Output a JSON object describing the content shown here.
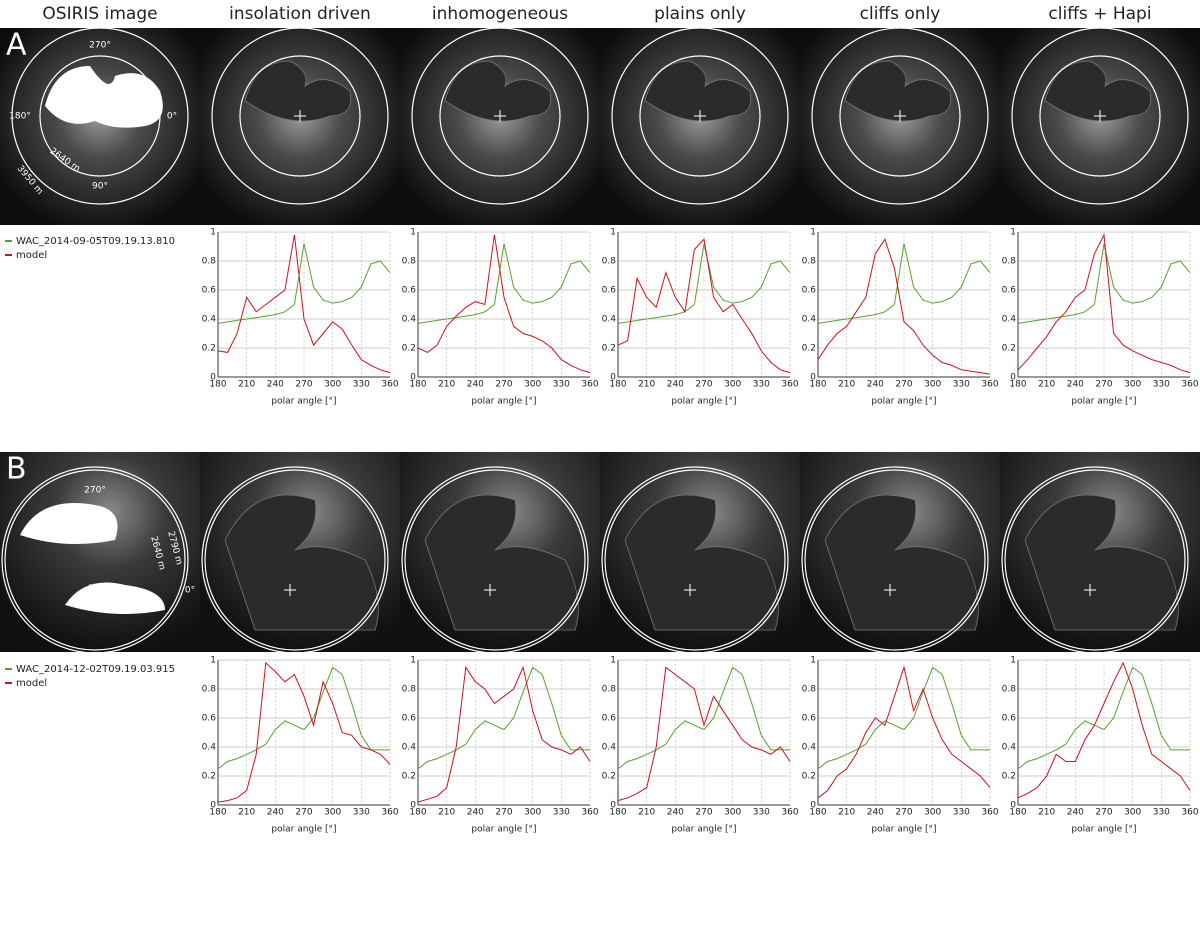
{
  "columns": [
    "OSIRIS image",
    "insolation driven",
    "inhomogeneous",
    "plains only",
    "cliffs only",
    "cliffs + Hapi"
  ],
  "panels": [
    {
      "letter": "A",
      "labels": [
        "270°",
        "0°",
        "180°",
        "90°",
        "2640 m",
        "3950 m"
      ]
    },
    {
      "letter": "B",
      "labels": [
        "270°",
        "0°",
        "2790 m",
        "2640 m"
      ]
    }
  ],
  "chart_data": [
    {
      "type": "line",
      "xlabel": "polar angle [°]",
      "x": [
        180,
        190,
        200,
        210,
        220,
        230,
        240,
        250,
        260,
        270,
        280,
        290,
        300,
        310,
        320,
        330,
        340,
        350,
        360
      ],
      "xlim": [
        180,
        360
      ],
      "xticks": [
        180,
        210,
        240,
        270,
        300,
        330,
        360
      ],
      "ylim": [
        0,
        1
      ],
      "yticks": [
        0,
        0.2,
        0.4,
        0.6,
        0.8,
        1
      ],
      "grid": true,
      "series": [
        {
          "name": "WAC_2014-09-05T09.19.13.810",
          "color": "#5aa02c",
          "values": [
            0.37,
            0.38,
            0.39,
            0.4,
            0.41,
            0.42,
            0.43,
            0.45,
            0.5,
            0.92,
            0.62,
            0.53,
            0.51,
            0.52,
            0.55,
            0.62,
            0.78,
            0.8,
            0.72
          ]
        },
        {
          "name": "model",
          "color": "#c8141e",
          "values": [
            0.18,
            0.17,
            0.3,
            0.55,
            0.45,
            0.5,
            0.55,
            0.6,
            0.98,
            0.4,
            0.22,
            0.3,
            0.38,
            0.33,
            0.22,
            0.12,
            0.08,
            0.05,
            0.03
          ]
        }
      ]
    },
    {
      "type": "line",
      "xlabel": "polar angle [°]",
      "x": [
        180,
        190,
        200,
        210,
        220,
        230,
        240,
        250,
        260,
        270,
        280,
        290,
        300,
        310,
        320,
        330,
        340,
        350,
        360
      ],
      "xlim": [
        180,
        360
      ],
      "xticks": [
        180,
        210,
        240,
        270,
        300,
        330,
        360
      ],
      "ylim": [
        0,
        1
      ],
      "yticks": [
        0,
        0.2,
        0.4,
        0.6,
        0.8,
        1
      ],
      "grid": true,
      "series": [
        {
          "color": "#5aa02c",
          "values": [
            0.37,
            0.38,
            0.39,
            0.4,
            0.41,
            0.42,
            0.43,
            0.45,
            0.5,
            0.92,
            0.62,
            0.53,
            0.51,
            0.52,
            0.55,
            0.62,
            0.78,
            0.8,
            0.72
          ]
        },
        {
          "color": "#c8141e",
          "values": [
            0.2,
            0.17,
            0.22,
            0.35,
            0.42,
            0.48,
            0.52,
            0.5,
            0.98,
            0.55,
            0.35,
            0.3,
            0.28,
            0.25,
            0.2,
            0.12,
            0.08,
            0.05,
            0.03
          ]
        }
      ]
    },
    {
      "type": "line",
      "xlabel": "polar angle [°]",
      "x": [
        180,
        190,
        200,
        210,
        220,
        230,
        240,
        250,
        260,
        270,
        280,
        290,
        300,
        310,
        320,
        330,
        340,
        350,
        360
      ],
      "xlim": [
        180,
        360
      ],
      "xticks": [
        180,
        210,
        240,
        270,
        300,
        330,
        360
      ],
      "ylim": [
        0,
        1
      ],
      "yticks": [
        0,
        0.2,
        0.4,
        0.6,
        0.8,
        1
      ],
      "grid": true,
      "series": [
        {
          "color": "#5aa02c",
          "values": [
            0.37,
            0.38,
            0.39,
            0.4,
            0.41,
            0.42,
            0.43,
            0.45,
            0.5,
            0.92,
            0.62,
            0.53,
            0.51,
            0.52,
            0.55,
            0.62,
            0.78,
            0.8,
            0.72
          ]
        },
        {
          "color": "#c8141e",
          "values": [
            0.22,
            0.25,
            0.68,
            0.55,
            0.48,
            0.72,
            0.55,
            0.45,
            0.88,
            0.95,
            0.55,
            0.45,
            0.5,
            0.4,
            0.3,
            0.18,
            0.1,
            0.05,
            0.03
          ]
        }
      ]
    },
    {
      "type": "line",
      "xlabel": "polar angle [°]",
      "x": [
        180,
        190,
        200,
        210,
        220,
        230,
        240,
        250,
        260,
        270,
        280,
        290,
        300,
        310,
        320,
        330,
        340,
        350,
        360
      ],
      "xlim": [
        180,
        360
      ],
      "xticks": [
        180,
        210,
        240,
        270,
        300,
        330,
        360
      ],
      "ylim": [
        0,
        1
      ],
      "yticks": [
        0,
        0.2,
        0.4,
        0.6,
        0.8,
        1
      ],
      "grid": true,
      "series": [
        {
          "color": "#5aa02c",
          "values": [
            0.37,
            0.38,
            0.39,
            0.4,
            0.41,
            0.42,
            0.43,
            0.45,
            0.5,
            0.92,
            0.62,
            0.53,
            0.51,
            0.52,
            0.55,
            0.62,
            0.78,
            0.8,
            0.72
          ]
        },
        {
          "color": "#c8141e",
          "values": [
            0.12,
            0.22,
            0.3,
            0.35,
            0.45,
            0.55,
            0.85,
            0.95,
            0.75,
            0.38,
            0.32,
            0.22,
            0.15,
            0.1,
            0.08,
            0.05,
            0.04,
            0.03,
            0.02
          ]
        }
      ]
    },
    {
      "type": "line",
      "xlabel": "polar angle [°]",
      "x": [
        180,
        190,
        200,
        210,
        220,
        230,
        240,
        250,
        260,
        270,
        280,
        290,
        300,
        310,
        320,
        330,
        340,
        350,
        360
      ],
      "xlim": [
        180,
        360
      ],
      "xticks": [
        180,
        210,
        240,
        270,
        300,
        330,
        360
      ],
      "ylim": [
        0,
        1
      ],
      "yticks": [
        0,
        0.2,
        0.4,
        0.6,
        0.8,
        1
      ],
      "grid": true,
      "series": [
        {
          "color": "#5aa02c",
          "values": [
            0.37,
            0.38,
            0.39,
            0.4,
            0.41,
            0.42,
            0.43,
            0.45,
            0.5,
            0.92,
            0.62,
            0.53,
            0.51,
            0.52,
            0.55,
            0.62,
            0.78,
            0.8,
            0.72
          ]
        },
        {
          "color": "#c8141e",
          "values": [
            0.05,
            0.12,
            0.2,
            0.28,
            0.38,
            0.45,
            0.55,
            0.6,
            0.85,
            0.98,
            0.3,
            0.22,
            0.18,
            0.15,
            0.12,
            0.1,
            0.08,
            0.05,
            0.03
          ]
        }
      ]
    },
    {
      "type": "line",
      "xlabel": "polar angle [°]",
      "x": [
        180,
        190,
        200,
        210,
        220,
        230,
        240,
        250,
        260,
        270,
        280,
        290,
        300,
        310,
        320,
        330,
        340,
        350,
        360
      ],
      "xlim": [
        180,
        360
      ],
      "xticks": [
        180,
        210,
        240,
        270,
        300,
        330,
        360
      ],
      "ylim": [
        0,
        1
      ],
      "yticks": [
        0,
        0.2,
        0.4,
        0.6,
        0.8,
        1
      ],
      "grid": true,
      "series": [
        {
          "name": "WAC_2014-12-02T09.19.03.915",
          "color": "#5aa02c",
          "values": [
            0.25,
            0.3,
            0.32,
            0.35,
            0.38,
            0.42,
            0.52,
            0.58,
            0.55,
            0.52,
            0.6,
            0.78,
            0.95,
            0.9,
            0.7,
            0.48,
            0.38,
            0.38,
            0.38
          ]
        },
        {
          "name": "model",
          "color": "#c8141e",
          "values": [
            0.02,
            0.03,
            0.05,
            0.1,
            0.35,
            0.98,
            0.92,
            0.85,
            0.9,
            0.75,
            0.55,
            0.85,
            0.7,
            0.5,
            0.48,
            0.4,
            0.38,
            0.35,
            0.28
          ]
        }
      ]
    },
    {
      "type": "line",
      "xlabel": "polar angle [°]",
      "x": [
        180,
        190,
        200,
        210,
        220,
        230,
        240,
        250,
        260,
        270,
        280,
        290,
        300,
        310,
        320,
        330,
        340,
        350,
        360
      ],
      "xlim": [
        180,
        360
      ],
      "xticks": [
        180,
        210,
        240,
        270,
        300,
        330,
        360
      ],
      "ylim": [
        0,
        1
      ],
      "yticks": [
        0,
        0.2,
        0.4,
        0.6,
        0.8,
        1
      ],
      "grid": true,
      "series": [
        {
          "color": "#5aa02c",
          "values": [
            0.25,
            0.3,
            0.32,
            0.35,
            0.38,
            0.42,
            0.52,
            0.58,
            0.55,
            0.52,
            0.6,
            0.78,
            0.95,
            0.9,
            0.7,
            0.48,
            0.38,
            0.38,
            0.38
          ]
        },
        {
          "color": "#c8141e",
          "values": [
            0.02,
            0.04,
            0.06,
            0.12,
            0.4,
            0.95,
            0.85,
            0.8,
            0.7,
            0.75,
            0.8,
            0.95,
            0.65,
            0.45,
            0.4,
            0.38,
            0.35,
            0.4,
            0.3
          ]
        }
      ]
    },
    {
      "type": "line",
      "xlabel": "polar angle [°]",
      "x": [
        180,
        190,
        200,
        210,
        220,
        230,
        240,
        250,
        260,
        270,
        280,
        290,
        300,
        310,
        320,
        330,
        340,
        350,
        360
      ],
      "xlim": [
        180,
        360
      ],
      "xticks": [
        180,
        210,
        240,
        270,
        300,
        330,
        360
      ],
      "ylim": [
        0,
        1
      ],
      "yticks": [
        0,
        0.2,
        0.4,
        0.6,
        0.8,
        1
      ],
      "grid": true,
      "series": [
        {
          "color": "#5aa02c",
          "values": [
            0.25,
            0.3,
            0.32,
            0.35,
            0.38,
            0.42,
            0.52,
            0.58,
            0.55,
            0.52,
            0.6,
            0.78,
            0.95,
            0.9,
            0.7,
            0.48,
            0.38,
            0.38,
            0.38
          ]
        },
        {
          "color": "#c8141e",
          "values": [
            0.03,
            0.05,
            0.08,
            0.12,
            0.4,
            0.95,
            0.9,
            0.85,
            0.8,
            0.55,
            0.75,
            0.65,
            0.55,
            0.45,
            0.4,
            0.38,
            0.35,
            0.4,
            0.3
          ]
        }
      ]
    },
    {
      "type": "line",
      "xlabel": "polar angle [°]",
      "x": [
        180,
        190,
        200,
        210,
        220,
        230,
        240,
        250,
        260,
        270,
        280,
        290,
        300,
        310,
        320,
        330,
        340,
        350,
        360
      ],
      "xlim": [
        180,
        360
      ],
      "xticks": [
        180,
        210,
        240,
        270,
        300,
        330,
        360
      ],
      "ylim": [
        0,
        1
      ],
      "yticks": [
        0,
        0.2,
        0.4,
        0.6,
        0.8,
        1
      ],
      "grid": true,
      "series": [
        {
          "color": "#5aa02c",
          "values": [
            0.25,
            0.3,
            0.32,
            0.35,
            0.38,
            0.42,
            0.52,
            0.58,
            0.55,
            0.52,
            0.6,
            0.78,
            0.95,
            0.9,
            0.7,
            0.48,
            0.38,
            0.38,
            0.38
          ]
        },
        {
          "color": "#c8141e",
          "values": [
            0.05,
            0.1,
            0.2,
            0.25,
            0.35,
            0.5,
            0.6,
            0.55,
            0.75,
            0.95,
            0.65,
            0.8,
            0.6,
            0.45,
            0.35,
            0.3,
            0.25,
            0.2,
            0.12
          ]
        }
      ]
    },
    {
      "type": "line",
      "xlabel": "polar angle [°]",
      "x": [
        180,
        190,
        200,
        210,
        220,
        230,
        240,
        250,
        260,
        270,
        280,
        290,
        300,
        310,
        320,
        330,
        340,
        350,
        360
      ],
      "xlim": [
        180,
        360
      ],
      "xticks": [
        180,
        210,
        240,
        270,
        300,
        330,
        360
      ],
      "ylim": [
        0,
        1
      ],
      "yticks": [
        0,
        0.2,
        0.4,
        0.6,
        0.8,
        1
      ],
      "grid": true,
      "series": [
        {
          "color": "#5aa02c",
          "values": [
            0.25,
            0.3,
            0.32,
            0.35,
            0.38,
            0.42,
            0.52,
            0.58,
            0.55,
            0.52,
            0.6,
            0.78,
            0.95,
            0.9,
            0.7,
            0.48,
            0.38,
            0.38,
            0.38
          ]
        },
        {
          "color": "#c8141e",
          "values": [
            0.05,
            0.08,
            0.12,
            0.2,
            0.35,
            0.3,
            0.3,
            0.45,
            0.55,
            0.7,
            0.85,
            0.98,
            0.8,
            0.55,
            0.35,
            0.3,
            0.25,
            0.2,
            0.1
          ]
        }
      ]
    }
  ]
}
